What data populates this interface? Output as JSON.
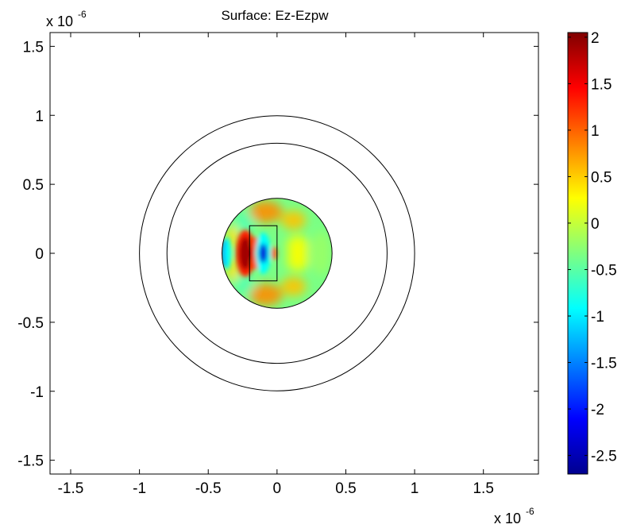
{
  "chart_data": {
    "type": "heatmap",
    "title": "Surface: Ez-Ezpw",
    "xlabel": "",
    "ylabel": "",
    "x_exponent": {
      "base": "x 10",
      "power": "-6"
    },
    "y_exponent": {
      "base": "x 10",
      "power": "-6"
    },
    "xlim": [
      -1.65,
      1.9
    ],
    "ylim": [
      -1.6,
      1.6
    ],
    "x_ticks": [
      -1.5,
      -1,
      -0.5,
      0,
      0.5,
      1,
      1.5
    ],
    "x_tick_labels": [
      "-1.5",
      "-1",
      "-0.5",
      "0",
      "0.5",
      "1",
      "1.5"
    ],
    "y_ticks": [
      1.5,
      1,
      0.5,
      0,
      -0.5,
      -1,
      -1.5
    ],
    "y_tick_labels": [
      "1.5",
      "1",
      "0.5",
      "0",
      "-0.5",
      "-1",
      "-1.5"
    ],
    "grid": false,
    "colormap": "jet",
    "colorbar": {
      "range": [
        -2.7,
        2.05
      ],
      "ticks": [
        2,
        1.5,
        1,
        0.5,
        0,
        -0.5,
        -1,
        -1.5,
        -2,
        -2.5
      ],
      "tick_labels": [
        "2",
        "1.5",
        "1",
        "0.5",
        "0",
        "-0.5",
        "-1",
        "-1.5",
        "-2",
        "-2.5"
      ],
      "placement": "right"
    },
    "geometry": {
      "circles": [
        {
          "center": [
            0,
            0
          ],
          "radius": 1.0
        },
        {
          "center": [
            0,
            0
          ],
          "radius": 0.8
        },
        {
          "center": [
            0,
            0
          ],
          "radius": 0.4
        }
      ],
      "rectangle": {
        "x": [
          -0.2,
          0
        ],
        "y": [
          -0.2,
          0.2
        ]
      }
    },
    "field_peaks": [
      {
        "location": [
          -0.23,
          0
        ],
        "value": 2.0
      },
      {
        "location": [
          -0.1,
          0
        ],
        "value": -2.6
      },
      {
        "location": [
          -0.02,
          0
        ],
        "value": 1.1
      }
    ]
  }
}
